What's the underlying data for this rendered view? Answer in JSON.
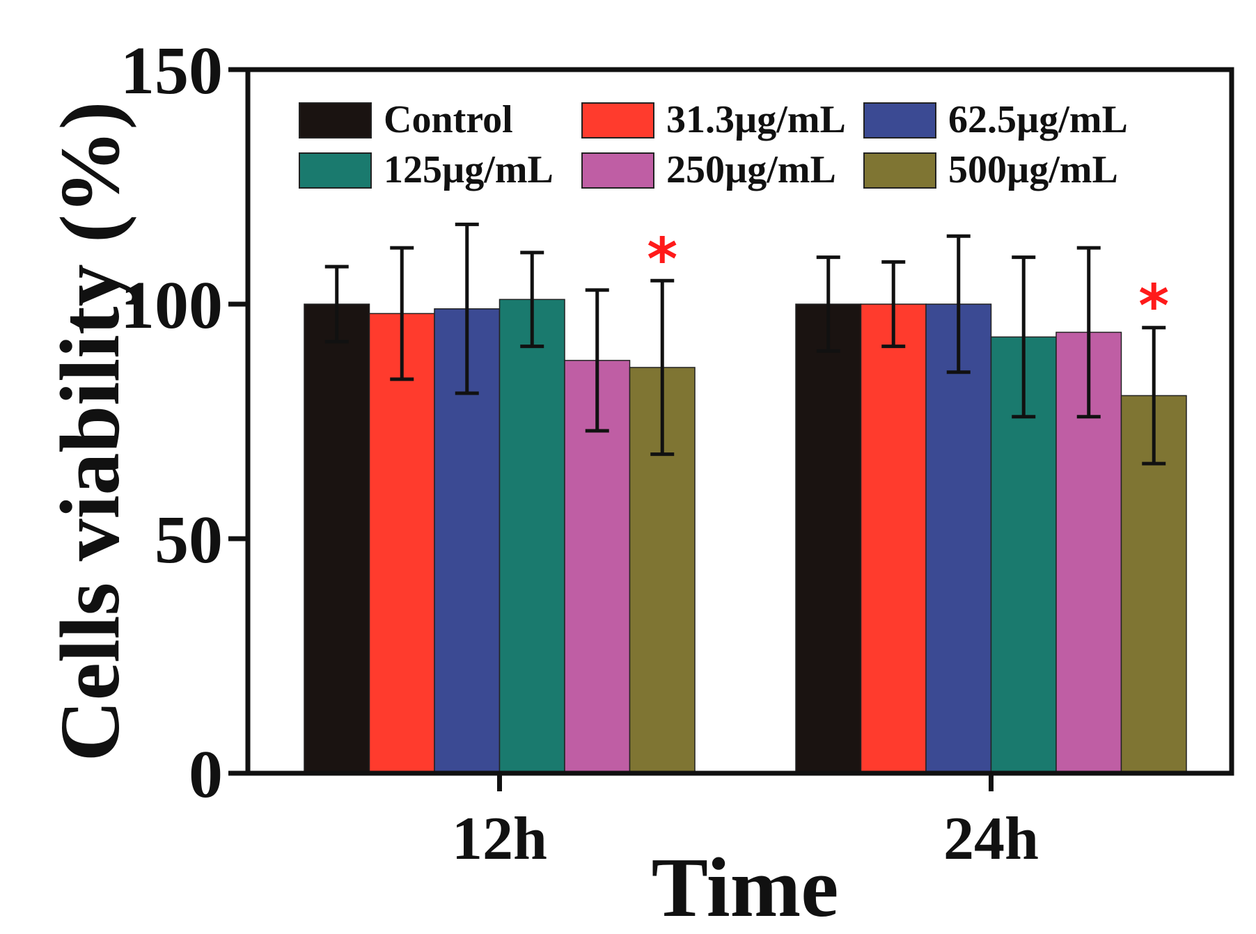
{
  "chart_data": {
    "type": "bar",
    "title": "",
    "xlabel": "Time",
    "ylabel": "Cells viability (%)",
    "ylim": [
      0,
      150
    ],
    "yticks": [
      0,
      50,
      100,
      150
    ],
    "categories": [
      "12h",
      "24h"
    ],
    "series": [
      {
        "name": "Control",
        "color": "#1a1311",
        "values": [
          100.0,
          100.0
        ],
        "errors": [
          8.0,
          10.0
        ]
      },
      {
        "name": "31.3µg/mL",
        "color": "#ff3b2d",
        "values": [
          98.0,
          100.0
        ],
        "errors": [
          14.0,
          9.0
        ]
      },
      {
        "name": "62.5µg/mL",
        "color": "#3b4a93",
        "values": [
          99.0,
          100.0
        ],
        "errors": [
          18.0,
          14.5
        ]
      },
      {
        "name": "125µg/mL",
        "color": "#1a7a6e",
        "values": [
          101.0,
          93.0
        ],
        "errors": [
          10.0,
          17.0
        ]
      },
      {
        "name": "250µg/mL",
        "color": "#bf5ea4",
        "values": [
          88.0,
          94.0
        ],
        "errors": [
          15.0,
          18.0
        ]
      },
      {
        "name": "500µg/mL",
        "color": "#7f7533",
        "values": [
          86.5,
          80.5
        ],
        "errors": [
          18.5,
          14.5
        ]
      }
    ],
    "significance": [
      {
        "category": "12h",
        "series": "500µg/mL",
        "mark": "*"
      },
      {
        "category": "24h",
        "series": "500µg/mL",
        "mark": "*"
      }
    ],
    "legend": {
      "placement": "top",
      "columns": 3
    }
  }
}
